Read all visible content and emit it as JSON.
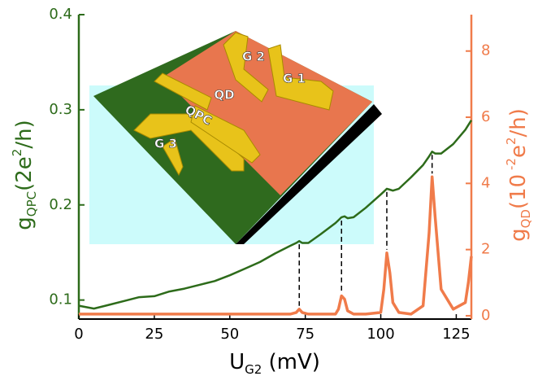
{
  "chart_data": {
    "type": "line",
    "xlabel": {
      "main": "U",
      "sub": "G2",
      "rest": " (mV)"
    },
    "ylabel": {
      "main": "g",
      "sub": "QPC",
      "rest": "(2e",
      "sup": "2",
      "end": "/h)"
    },
    "y2label": {
      "main": "g",
      "sub": "QD",
      "rest": "(10",
      "sup": " -2",
      "rest2": "e",
      "sup2": "2",
      "end": "/h)"
    },
    "inset_labels": [
      "G 2",
      "G 1",
      "QD",
      "QPC",
      "G 3"
    ],
    "x": [
      0,
      5,
      10,
      15,
      20,
      25,
      30,
      35,
      40,
      45,
      50,
      55,
      60,
      65,
      70,
      72,
      73,
      74,
      76,
      80,
      85,
      86,
      87,
      88,
      89,
      91,
      95,
      100,
      101,
      102,
      103,
      104,
      106,
      110,
      114,
      116,
      117,
      118,
      120,
      124,
      128,
      129,
      130
    ],
    "series": [
      {
        "name": "gQPC",
        "color": "#2d6b1a",
        "axis": "y",
        "values": [
          0.094,
          0.091,
          0.095,
          0.099,
          0.103,
          0.104,
          0.109,
          0.112,
          0.116,
          0.12,
          0.126,
          0.133,
          0.14,
          0.149,
          0.157,
          0.16,
          0.162,
          0.16,
          0.16,
          0.169,
          0.181,
          0.184,
          0.187,
          0.188,
          0.186,
          0.187,
          0.197,
          0.211,
          0.214,
          0.217,
          0.216,
          0.215,
          0.217,
          0.229,
          0.242,
          0.251,
          0.256,
          0.254,
          0.254,
          0.264,
          0.279,
          0.284,
          0.289
        ]
      },
      {
        "name": "gQD",
        "color": "#f07b4a",
        "axis": "y2",
        "values": [
          0.05,
          0.05,
          0.05,
          0.05,
          0.05,
          0.05,
          0.05,
          0.05,
          0.05,
          0.05,
          0.05,
          0.05,
          0.05,
          0.05,
          0.05,
          0.1,
          0.2,
          0.1,
          0.05,
          0.05,
          0.05,
          0.2,
          0.6,
          0.5,
          0.15,
          0.05,
          0.05,
          0.1,
          0.8,
          1.9,
          1.3,
          0.4,
          0.1,
          0.05,
          0.3,
          2.5,
          4.2,
          3.0,
          0.8,
          0.2,
          0.4,
          1.0,
          1.8
        ]
      }
    ],
    "xlim": [
      0,
      130
    ],
    "xticks": [
      0,
      25,
      50,
      75,
      100,
      125
    ],
    "ylim": [
      0.08,
      0.4
    ],
    "yticks": [
      0.1,
      0.2,
      0.3,
      0.4
    ],
    "y2lim": [
      -0.1,
      9.1
    ],
    "y2ticks": [
      0,
      2,
      4,
      6,
      8
    ]
  }
}
